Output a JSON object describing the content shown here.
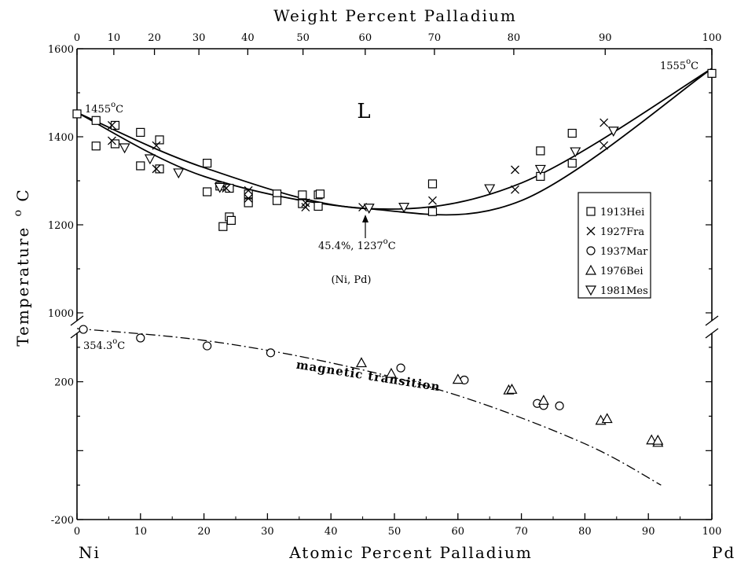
{
  "chart_data": {
    "type": "scatter",
    "title": "",
    "xlabel": "Atomic Percent Palladium",
    "x2label": "Weight Percent Palladium",
    "ylabel": "Temperature",
    "ylabel_unit": "oC",
    "xlim": [
      0,
      100
    ],
    "x_ticks": [
      "0",
      "10",
      "20",
      "30",
      "40",
      "50",
      "60",
      "70",
      "80",
      "90",
      "100"
    ],
    "x2_ticks": [
      {
        "label": "0",
        "at": 0
      },
      {
        "label": "10",
        "at": 5.8
      },
      {
        "label": "20",
        "at": 12.2
      },
      {
        "label": "30",
        "at": 19.2
      },
      {
        "label": "40",
        "at": 26.9
      },
      {
        "label": "50",
        "at": 35.6
      },
      {
        "label": "60",
        "at": 45.4
      },
      {
        "label": "70",
        "at": 56.3
      },
      {
        "label": "80",
        "at": 68.8
      },
      {
        "label": "90",
        "at": 83.2
      },
      {
        "label": "100",
        "at": 100
      }
    ],
    "upper_ylim": [
      1000,
      1600
    ],
    "upper_y_ticks": [
      "1000",
      "1200",
      "1400",
      "1600"
    ],
    "lower_ylim": [
      -200,
      400
    ],
    "lower_y_ticks": [
      "-200",
      "200"
    ],
    "end_labels": {
      "left": "Ni",
      "right": "Pd"
    },
    "legend": {
      "position": "right",
      "entries": [
        {
          "marker": "square",
          "label": "1913Hei"
        },
        {
          "marker": "x",
          "label": "1927Fra"
        },
        {
          "marker": "circle",
          "label": "1937Mar"
        },
        {
          "marker": "triangle-up",
          "label": "1976Bei"
        },
        {
          "marker": "triangle-down",
          "label": "1981Mes"
        }
      ]
    },
    "annotations": {
      "ni_melting": "1455",
      "pd_melting": "1555",
      "ni_curie": "354.3",
      "minimum_pct": "45.4%, 1237",
      "deg_sup": "o",
      "deg_unit": "C",
      "liquid_region": "L",
      "solid_region": "(Ni, Pd)",
      "magnetic_curve": "magnetic transition"
    },
    "liquidus": [
      [
        0,
        1455
      ],
      [
        20,
        1330
      ],
      [
        45.4,
        1237
      ],
      [
        70,
        1295
      ],
      [
        100,
        1555
      ]
    ],
    "solidus": [
      [
        0,
        1455
      ],
      [
        20,
        1310
      ],
      [
        45.4,
        1237
      ],
      [
        70,
        1255
      ],
      [
        100,
        1555
      ]
    ],
    "magnetic_transition": [
      [
        0,
        354.3
      ],
      [
        20,
        320
      ],
      [
        40,
        255
      ],
      [
        60,
        160
      ],
      [
        80,
        20
      ],
      [
        92,
        -100
      ]
    ],
    "series": [
      {
        "name": "1913Hei",
        "marker": "square",
        "points": [
          [
            0,
            1452
          ],
          [
            3,
            1437
          ],
          [
            3,
            1379
          ],
          [
            6,
            1426
          ],
          [
            6,
            1384
          ],
          [
            10,
            1410
          ],
          [
            10,
            1334
          ],
          [
            13,
            1393
          ],
          [
            13,
            1327
          ],
          [
            20.5,
            1340
          ],
          [
            20.5,
            1275
          ],
          [
            22.5,
            1288
          ],
          [
            23,
            1196
          ],
          [
            24,
            1283
          ],
          [
            24,
            1218
          ],
          [
            24.3,
            1210
          ],
          [
            27,
            1270
          ],
          [
            27,
            1250
          ],
          [
            31.5,
            1270
          ],
          [
            31.5,
            1255
          ],
          [
            35.5,
            1268
          ],
          [
            35.5,
            1248
          ],
          [
            38,
            1268
          ],
          [
            38,
            1242
          ],
          [
            38.3,
            1270
          ],
          [
            56,
            1293
          ],
          [
            56,
            1230
          ],
          [
            73,
            1368
          ],
          [
            73,
            1310
          ],
          [
            78,
            1408
          ],
          [
            78,
            1340
          ],
          [
            100,
            1544
          ]
        ]
      },
      {
        "name": "1927Fra",
        "marker": "x",
        "points": [
          [
            5.5,
            1426
          ],
          [
            5.5,
            1391
          ],
          [
            12.5,
            1380
          ],
          [
            12.5,
            1327
          ],
          [
            23.5,
            1283
          ],
          [
            27,
            1278
          ],
          [
            27,
            1260
          ],
          [
            36,
            1250
          ],
          [
            36,
            1240
          ],
          [
            45,
            1240
          ],
          [
            56,
            1255
          ],
          [
            69,
            1325
          ],
          [
            69,
            1280
          ],
          [
            83,
            1432
          ],
          [
            83,
            1380
          ]
        ]
      },
      {
        "name": "1937Mar",
        "marker": "circle",
        "points": [
          [
            1,
            352
          ],
          [
            10,
            327
          ],
          [
            20.5,
            304
          ],
          [
            30.5,
            284
          ],
          [
            51,
            240
          ],
          [
            61,
            205
          ],
          [
            72.5,
            137
          ],
          [
            73.5,
            131
          ],
          [
            76,
            130
          ]
        ]
      },
      {
        "name": "1976Bei",
        "marker": "triangle-up",
        "points": [
          [
            44.8,
            255
          ],
          [
            49.5,
            224
          ],
          [
            60,
            207
          ],
          [
            68,
            176
          ],
          [
            68.5,
            178
          ],
          [
            73.5,
            146
          ],
          [
            82.5,
            88
          ],
          [
            83.5,
            93
          ],
          [
            90.5,
            31
          ],
          [
            91.5,
            24
          ],
          [
            91.5,
            30
          ]
        ]
      },
      {
        "name": "1981Mes",
        "marker": "triangle-down",
        "points": [
          [
            7.5,
            1375
          ],
          [
            11.5,
            1350
          ],
          [
            16,
            1318
          ],
          [
            22.5,
            1285
          ],
          [
            46,
            1238
          ],
          [
            51.5,
            1240
          ],
          [
            65,
            1282
          ],
          [
            73,
            1326
          ],
          [
            78.5,
            1366
          ],
          [
            84.5,
            1413
          ]
        ]
      }
    ],
    "grid": false
  }
}
